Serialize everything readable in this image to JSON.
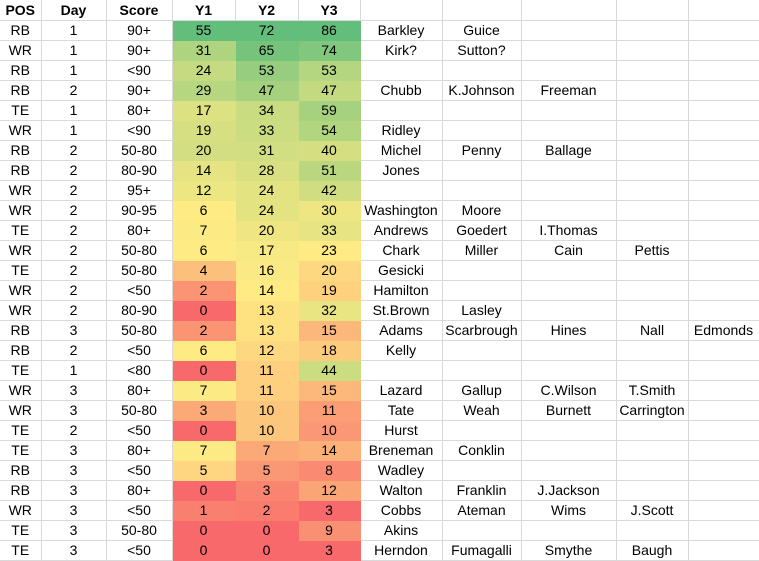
{
  "table": {
    "headers": [
      "POS",
      "Day",
      "Score",
      "Y1",
      "Y2",
      "Y3"
    ],
    "colors": {
      "gridline": "#D9D9D9",
      "heat_scale_min": "#F8696B",
      "heat_scale_mid": "#FFEB84",
      "heat_scale_max": "#63BE7B",
      "text": "#000000"
    },
    "rows": [
      {
        "pos": "RB",
        "day": "1",
        "score": "90+",
        "y": [
          {
            "v": "55",
            "c": "#63BE7B"
          },
          {
            "v": "72",
            "c": "#63BE7B"
          },
          {
            "v": "86",
            "c": "#63BE7B"
          }
        ],
        "names": [
          "Barkley",
          "Guice",
          "",
          "",
          ""
        ]
      },
      {
        "pos": "WR",
        "day": "1",
        "score": "90+",
        "y": [
          {
            "v": "31",
            "c": "#AFD47F"
          },
          {
            "v": "65",
            "c": "#76C37C"
          },
          {
            "v": "74",
            "c": "#81C77D"
          }
        ],
        "names": [
          "Kirk?",
          "Sutton?",
          "",
          "",
          ""
        ]
      },
      {
        "pos": "RB",
        "day": "1",
        "score": "<90",
        "y": [
          {
            "v": "24",
            "c": "#C6DA81"
          },
          {
            "v": "53",
            "c": "#96CD7E"
          },
          {
            "v": "53",
            "c": "#B5D680"
          }
        ],
        "names": [
          "",
          "",
          "",
          "",
          ""
        ]
      },
      {
        "pos": "RB",
        "day": "2",
        "score": "90+",
        "y": [
          {
            "v": "29",
            "c": "#B6D680"
          },
          {
            "v": "47",
            "c": "#A6D17F"
          },
          {
            "v": "47",
            "c": "#C4DA81"
          }
        ],
        "names": [
          "Chubb",
          "K.Johnson",
          "Freeman",
          "",
          ""
        ]
      },
      {
        "pos": "TE",
        "day": "1",
        "score": "80+",
        "y": [
          {
            "v": "17",
            "c": "#DCE182"
          },
          {
            "v": "34",
            "c": "#C9DC81"
          },
          {
            "v": "59",
            "c": "#A6D17F"
          }
        ],
        "names": [
          "",
          "",
          "",
          "",
          ""
        ]
      },
      {
        "pos": "WR",
        "day": "1",
        "score": "<90",
        "y": [
          {
            "v": "19",
            "c": "#D6DF82"
          },
          {
            "v": "33",
            "c": "#CCDC81"
          },
          {
            "v": "54",
            "c": "#B2D580"
          }
        ],
        "names": [
          "Ridley",
          "",
          "",
          "",
          ""
        ]
      },
      {
        "pos": "RB",
        "day": "2",
        "score": "50-80",
        "y": [
          {
            "v": "20",
            "c": "#D2DE81"
          },
          {
            "v": "31",
            "c": "#D1DE81"
          },
          {
            "v": "40",
            "c": "#D5DF82"
          }
        ],
        "names": [
          "Michel",
          "Penny",
          "Ballage",
          "",
          ""
        ]
      },
      {
        "pos": "RB",
        "day": "2",
        "score": "80-90",
        "y": [
          {
            "v": "14",
            "c": "#E6E482"
          },
          {
            "v": "28",
            "c": "#D9E082"
          },
          {
            "v": "51",
            "c": "#BAD780"
          }
        ],
        "names": [
          "Jones",
          "",
          "",
          "",
          ""
        ]
      },
      {
        "pos": "WR",
        "day": "2",
        "score": "95+",
        "y": [
          {
            "v": "12",
            "c": "#ECE683"
          },
          {
            "v": "24",
            "c": "#E4E382"
          },
          {
            "v": "42",
            "c": "#D0DD81"
          }
        ],
        "names": [
          "",
          "",
          "",
          "",
          ""
        ]
      },
      {
        "pos": "WR",
        "day": "2",
        "score": "90-95",
        "y": [
          {
            "v": "6",
            "c": "#FFEB84"
          },
          {
            "v": "24",
            "c": "#E4E382"
          },
          {
            "v": "30",
            "c": "#EEE683"
          }
        ],
        "names": [
          "Washington",
          "Moore",
          "",
          "",
          ""
        ]
      },
      {
        "pos": "TE",
        "day": "2",
        "score": "80+",
        "y": [
          {
            "v": "7",
            "c": "#FCEA84"
          },
          {
            "v": "20",
            "c": "#EFE683"
          },
          {
            "v": "33",
            "c": "#E6E483"
          }
        ],
        "names": [
          "Andrews",
          "Goedert",
          "I.Thomas",
          "",
          ""
        ]
      },
      {
        "pos": "WR",
        "day": "2",
        "score": "50-80",
        "y": [
          {
            "v": "6",
            "c": "#FFEB84"
          },
          {
            "v": "17",
            "c": "#F7E984"
          },
          {
            "v": "23",
            "c": "#FFEB84"
          }
        ],
        "names": [
          "Chark",
          "Miller",
          "Cain",
          "Pettis",
          ""
        ]
      },
      {
        "pos": "TE",
        "day": "2",
        "score": "50-80",
        "y": [
          {
            "v": "4",
            "c": "#FDC07C"
          },
          {
            "v": "16",
            "c": "#FAE984"
          },
          {
            "v": "20",
            "c": "#FED880"
          }
        ],
        "names": [
          "Gesicki",
          "",
          "",
          "",
          ""
        ]
      },
      {
        "pos": "WR",
        "day": "2",
        "score": "<50",
        "y": [
          {
            "v": "2",
            "c": "#FA9473"
          },
          {
            "v": "14",
            "c": "#FFEB84"
          },
          {
            "v": "19",
            "c": "#FED17F"
          }
        ],
        "names": [
          "Hamilton",
          "",
          "",
          "",
          ""
        ]
      },
      {
        "pos": "WR",
        "day": "2",
        "score": "80-90",
        "y": [
          {
            "v": "0",
            "c": "#F8696B"
          },
          {
            "v": "13",
            "c": "#FEE282"
          },
          {
            "v": "32",
            "c": "#E9E583"
          }
        ],
        "names": [
          "St.Brown",
          "Lasley",
          "",
          "",
          ""
        ]
      },
      {
        "pos": "RB",
        "day": "3",
        "score": "50-80",
        "y": [
          {
            "v": "2",
            "c": "#FA9473"
          },
          {
            "v": "13",
            "c": "#FEE282"
          },
          {
            "v": "15",
            "c": "#FCB77A"
          }
        ],
        "names": [
          "Adams",
          "Scarbrough",
          "Hines",
          "Nall",
          "Edmonds"
        ]
      },
      {
        "pos": "RB",
        "day": "2",
        "score": "<50",
        "y": [
          {
            "v": "6",
            "c": "#FFEB84"
          },
          {
            "v": "12",
            "c": "#FED880"
          },
          {
            "v": "18",
            "c": "#FDCB7E"
          }
        ],
        "names": [
          "Kelly",
          "",
          "",
          "",
          ""
        ]
      },
      {
        "pos": "TE",
        "day": "1",
        "score": "<80",
        "y": [
          {
            "v": "0",
            "c": "#F8696B"
          },
          {
            "v": "11",
            "c": "#FECF7F"
          },
          {
            "v": "44",
            "c": "#CBDC81"
          }
        ],
        "names": [
          "",
          "",
          "",
          "",
          ""
        ]
      },
      {
        "pos": "WR",
        "day": "3",
        "score": "80+",
        "y": [
          {
            "v": "7",
            "c": "#FCEA84"
          },
          {
            "v": "11",
            "c": "#FECF7F"
          },
          {
            "v": "15",
            "c": "#FCB77A"
          }
        ],
        "names": [
          "Lazard",
          "Gallup",
          "C.Wilson",
          "T.Smith",
          ""
        ]
      },
      {
        "pos": "WR",
        "day": "3",
        "score": "50-80",
        "y": [
          {
            "v": "3",
            "c": "#FBAA77"
          },
          {
            "v": "10",
            "c": "#FDC67D"
          },
          {
            "v": "11",
            "c": "#FB9D75"
          }
        ],
        "names": [
          "Tate",
          "Weah",
          "Burnett",
          "Carrington",
          ""
        ]
      },
      {
        "pos": "TE",
        "day": "2",
        "score": "<50",
        "y": [
          {
            "v": "0",
            "c": "#F8696B"
          },
          {
            "v": "10",
            "c": "#FDC67D"
          },
          {
            "v": "10",
            "c": "#FA9774"
          }
        ],
        "names": [
          "Hurst",
          "",
          "",
          "",
          ""
        ]
      },
      {
        "pos": "TE",
        "day": "3",
        "score": "80+",
        "y": [
          {
            "v": "7",
            "c": "#FCEA84"
          },
          {
            "v": "7",
            "c": "#FBAA77"
          },
          {
            "v": "14",
            "c": "#FCB179"
          }
        ],
        "names": [
          "Breneman",
          "Conklin",
          "",
          "",
          ""
        ]
      },
      {
        "pos": "RB",
        "day": "3",
        "score": "<50",
        "y": [
          {
            "v": "5",
            "c": "#FED580"
          },
          {
            "v": "5",
            "c": "#FA9774"
          },
          {
            "v": "8",
            "c": "#FA8A71"
          }
        ],
        "names": [
          "Wadley",
          "",
          "",
          "",
          ""
        ]
      },
      {
        "pos": "RB",
        "day": "3",
        "score": "80+",
        "y": [
          {
            "v": "0",
            "c": "#F8696B"
          },
          {
            "v": "3",
            "c": "#F98570"
          },
          {
            "v": "12",
            "c": "#FBA476"
          }
        ],
        "names": [
          "Walton",
          "Franklin",
          "J.Jackson",
          "",
          ""
        ]
      },
      {
        "pos": "WR",
        "day": "3",
        "score": "<50",
        "y": [
          {
            "v": "1",
            "c": "#F97F6F"
          },
          {
            "v": "2",
            "c": "#F97C6F"
          },
          {
            "v": "3",
            "c": "#F8696B"
          }
        ],
        "names": [
          "Cobbs",
          "Ateman",
          "Wims",
          "J.Scott",
          ""
        ]
      },
      {
        "pos": "TE",
        "day": "3",
        "score": "50-80",
        "y": [
          {
            "v": "0",
            "c": "#F8696B"
          },
          {
            "v": "0",
            "c": "#F8696B"
          },
          {
            "v": "9",
            "c": "#FA9073"
          }
        ],
        "names": [
          "Akins",
          "",
          "",
          "",
          ""
        ]
      },
      {
        "pos": "TE",
        "day": "3",
        "score": "<50",
        "y": [
          {
            "v": "0",
            "c": "#F8696B"
          },
          {
            "v": "0",
            "c": "#F8696B"
          },
          {
            "v": "3",
            "c": "#F8696B"
          }
        ],
        "names": [
          "Herndon",
          "Fumagalli",
          "Smythe",
          "Baugh",
          ""
        ]
      }
    ]
  }
}
